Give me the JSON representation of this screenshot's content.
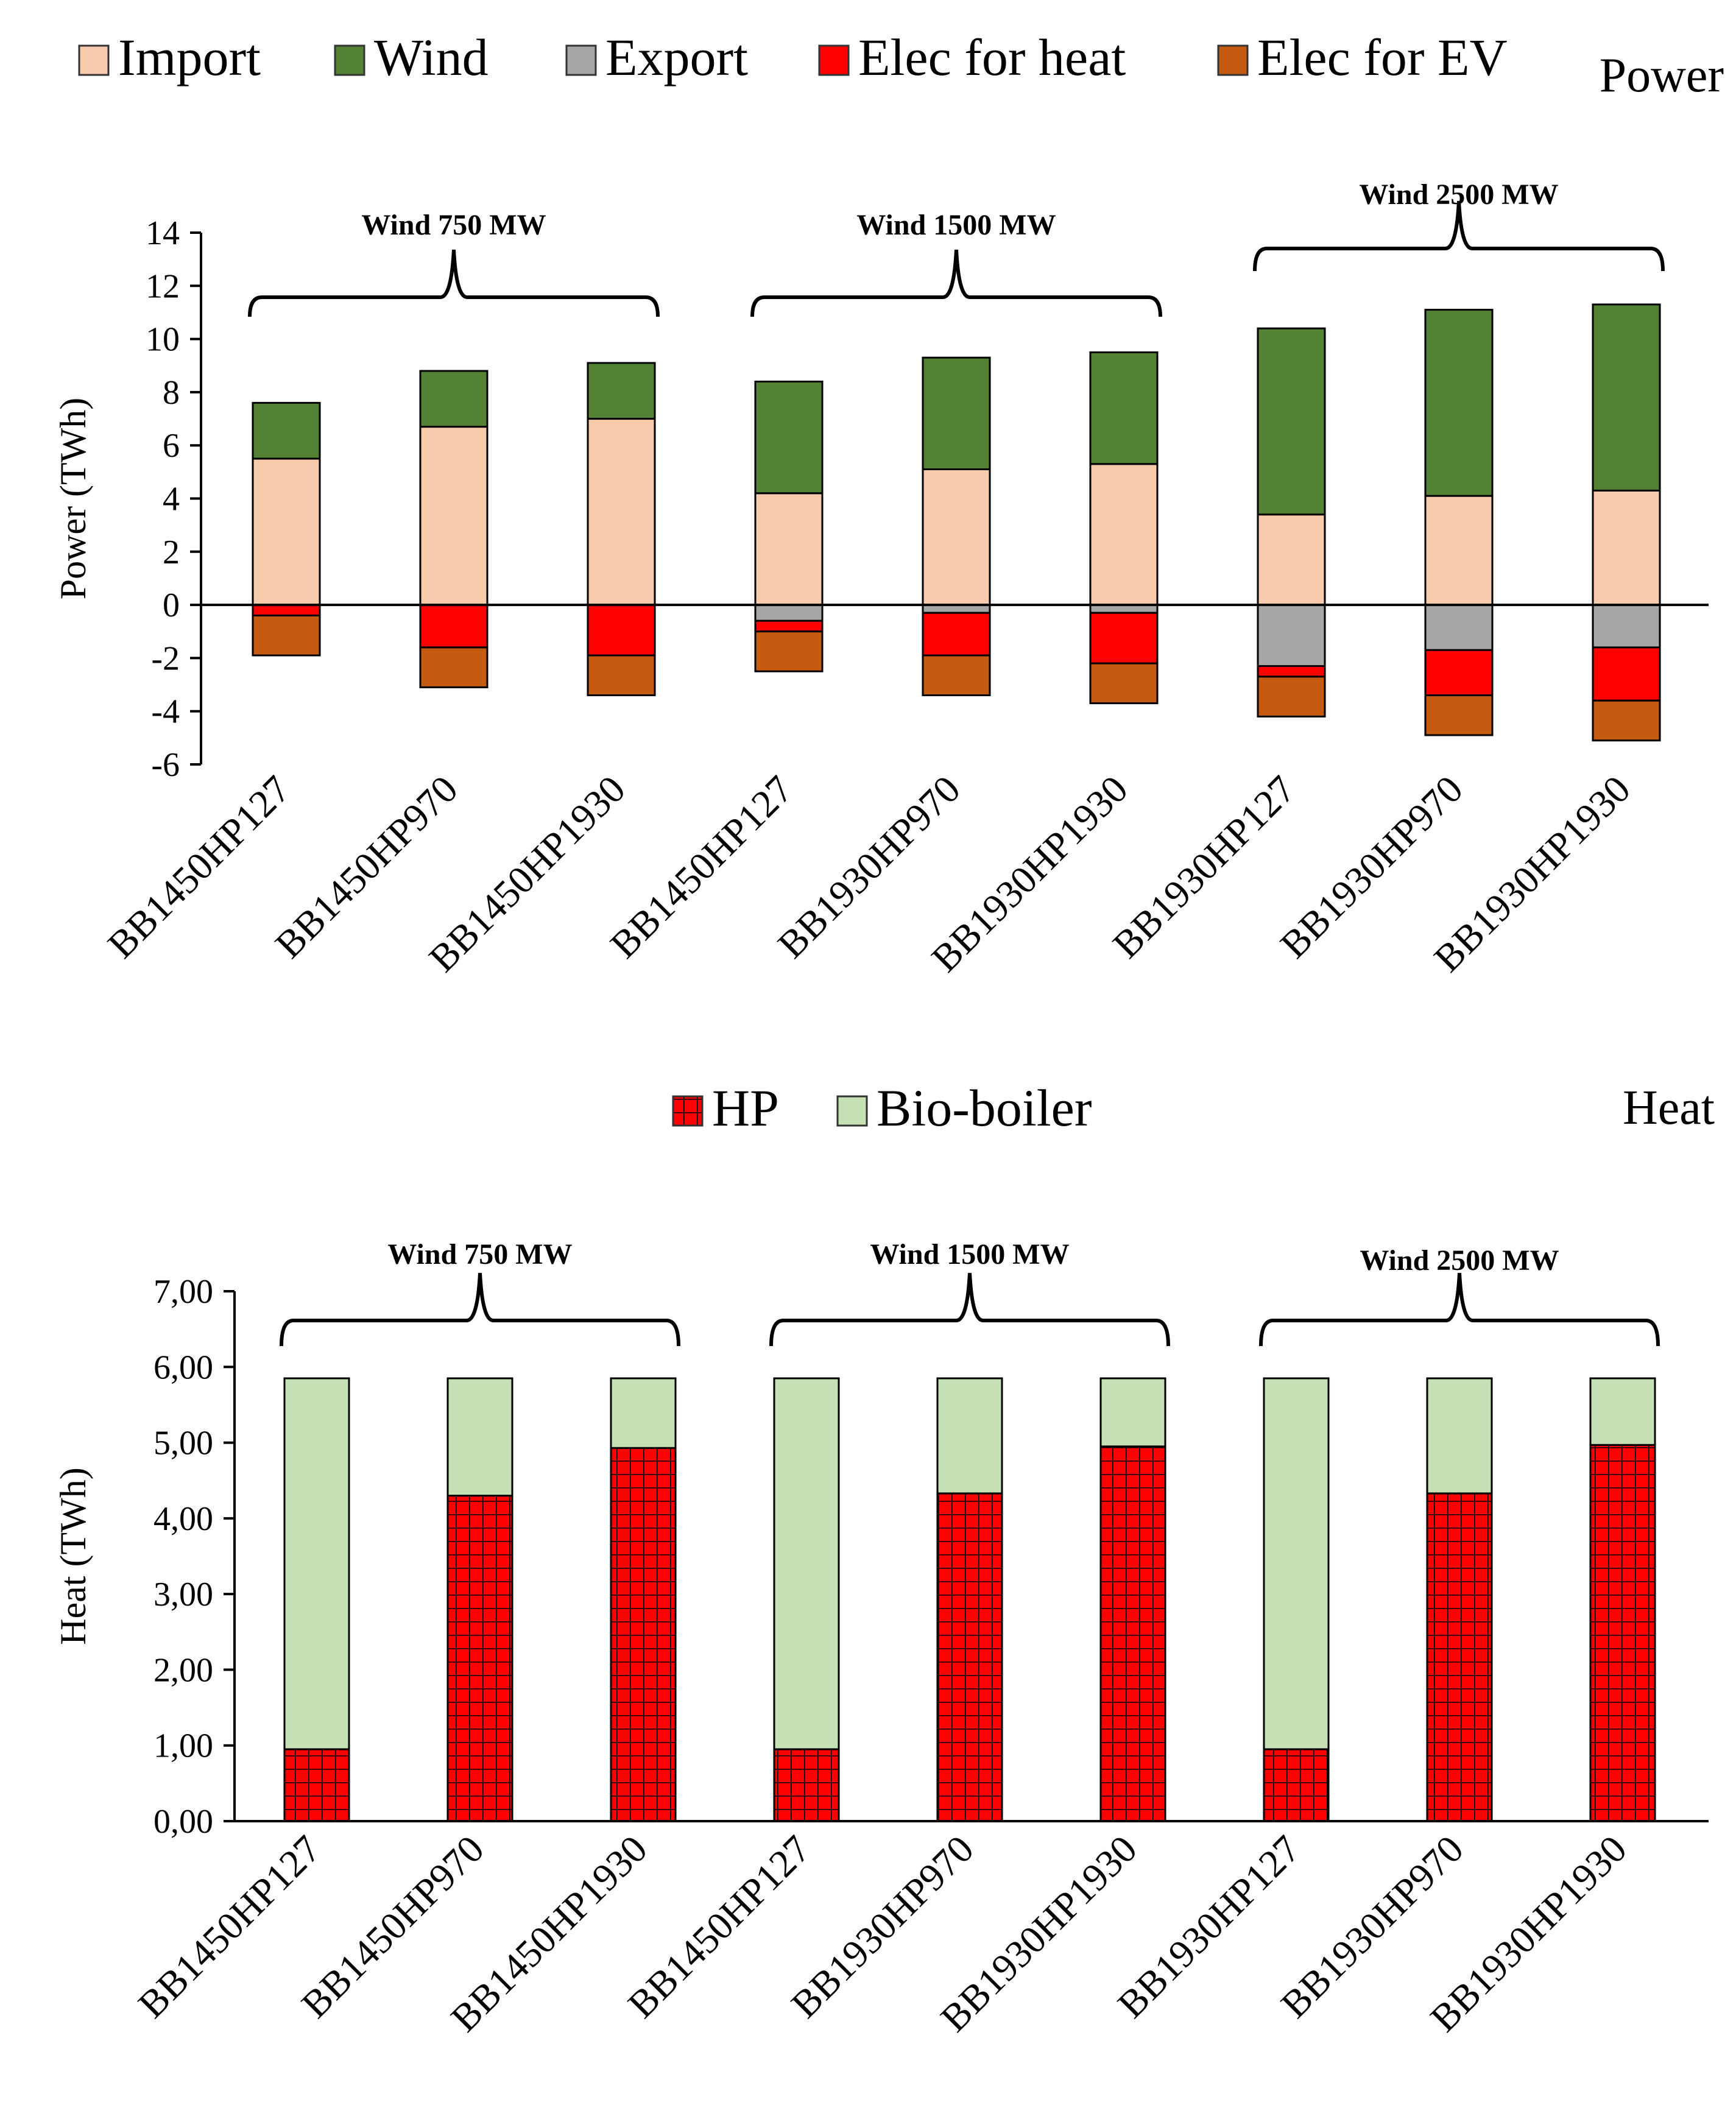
{
  "chart_data": [
    {
      "type": "bar",
      "stacked": true,
      "corner_label": "Power",
      "ylabel": "Power (TWh)",
      "ylim": [
        -6,
        14
      ],
      "yticks": [
        14,
        12,
        10,
        8,
        6,
        4,
        2,
        0,
        -2,
        -4,
        -6
      ],
      "ytick_labels": [
        "14",
        "12",
        "10",
        "8",
        "6",
        "4",
        "2",
        "0",
        "-2",
        "-4",
        "-6"
      ],
      "categories": [
        "BB1450HP127",
        "BB1450HP970",
        "BB1450HP1930",
        "BB1450HP127",
        "BB1930HP970",
        "BB1930HP1930",
        "BB1930HP127",
        "BB1930HP970",
        "BB1930HP1930"
      ],
      "legend": [
        "Import",
        "Wind",
        "Export",
        "Elec for heat",
        "Elec for EV"
      ],
      "positive_series": [
        {
          "name": "Import",
          "color": "#f8cbad",
          "values": [
            5.5,
            6.7,
            7.0,
            4.2,
            5.1,
            5.3,
            3.4,
            4.1,
            4.3
          ]
        },
        {
          "name": "Wind",
          "color": "#548235",
          "values": [
            2.1,
            2.1,
            2.1,
            4.2,
            4.2,
            4.2,
            7.0,
            7.0,
            7.0
          ]
        }
      ],
      "negative_series": [
        {
          "name": "Export",
          "color": "#a6a6a6",
          "values": [
            0.0,
            0.0,
            0.0,
            -0.6,
            -0.3,
            -0.3,
            -2.3,
            -1.7,
            -1.6
          ]
        },
        {
          "name": "Elec for heat",
          "color": "#ff0000",
          "values": [
            -0.4,
            -1.6,
            -1.9,
            -0.4,
            -1.6,
            -1.9,
            -0.4,
            -1.7,
            -2.0
          ]
        },
        {
          "name": "Elec for EV",
          "color": "#c55a11",
          "values": [
            -1.5,
            -1.5,
            -1.5,
            -1.5,
            -1.5,
            -1.5,
            -1.5,
            -1.5,
            -1.5
          ]
        }
      ],
      "groups": [
        {
          "label": "Wind  750 MW",
          "first": 0,
          "last": 2
        },
        {
          "label": "Wind  1500 MW",
          "first": 3,
          "last": 5
        },
        {
          "label": "Wind  2500 MW",
          "first": 6,
          "last": 8
        }
      ]
    },
    {
      "type": "bar",
      "stacked": true,
      "corner_label": "Heat",
      "ylabel": "Heat (TWh)",
      "ylim": [
        0,
        7
      ],
      "yticks": [
        7,
        6,
        5,
        4,
        3,
        2,
        1,
        0
      ],
      "ytick_labels": [
        "7,00",
        "6,00",
        "5,00",
        "4,00",
        "3,00",
        "2,00",
        "1,00",
        "0,00"
      ],
      "categories": [
        "BB1450HP127",
        "BB1450HP970",
        "BB1450HP1930",
        "BB1450HP127",
        "BB1930HP970",
        "BB1930HP1930",
        "BB1930HP127",
        "BB1930HP970",
        "BB1930HP1930"
      ],
      "legend": [
        "HP",
        "Bio-boiler"
      ],
      "series": [
        {
          "name": "HP",
          "color": "#ff0000",
          "pattern": "grid",
          "values": [
            0.95,
            4.3,
            4.93,
            0.95,
            4.33,
            4.95,
            0.95,
            4.33,
            4.97
          ]
        },
        {
          "name": "Bio-boiler",
          "color": "#c5e0b4",
          "values": [
            4.9,
            1.55,
            0.92,
            4.9,
            1.52,
            0.9,
            4.9,
            1.52,
            0.88
          ]
        }
      ],
      "groups": [
        {
          "label": "Wind  750 MW",
          "first": 0,
          "last": 2
        },
        {
          "label": "Wind  1500 MW",
          "first": 3,
          "last": 5
        },
        {
          "label": "Wind  2500 MW",
          "first": 6,
          "last": 8
        }
      ]
    }
  ]
}
